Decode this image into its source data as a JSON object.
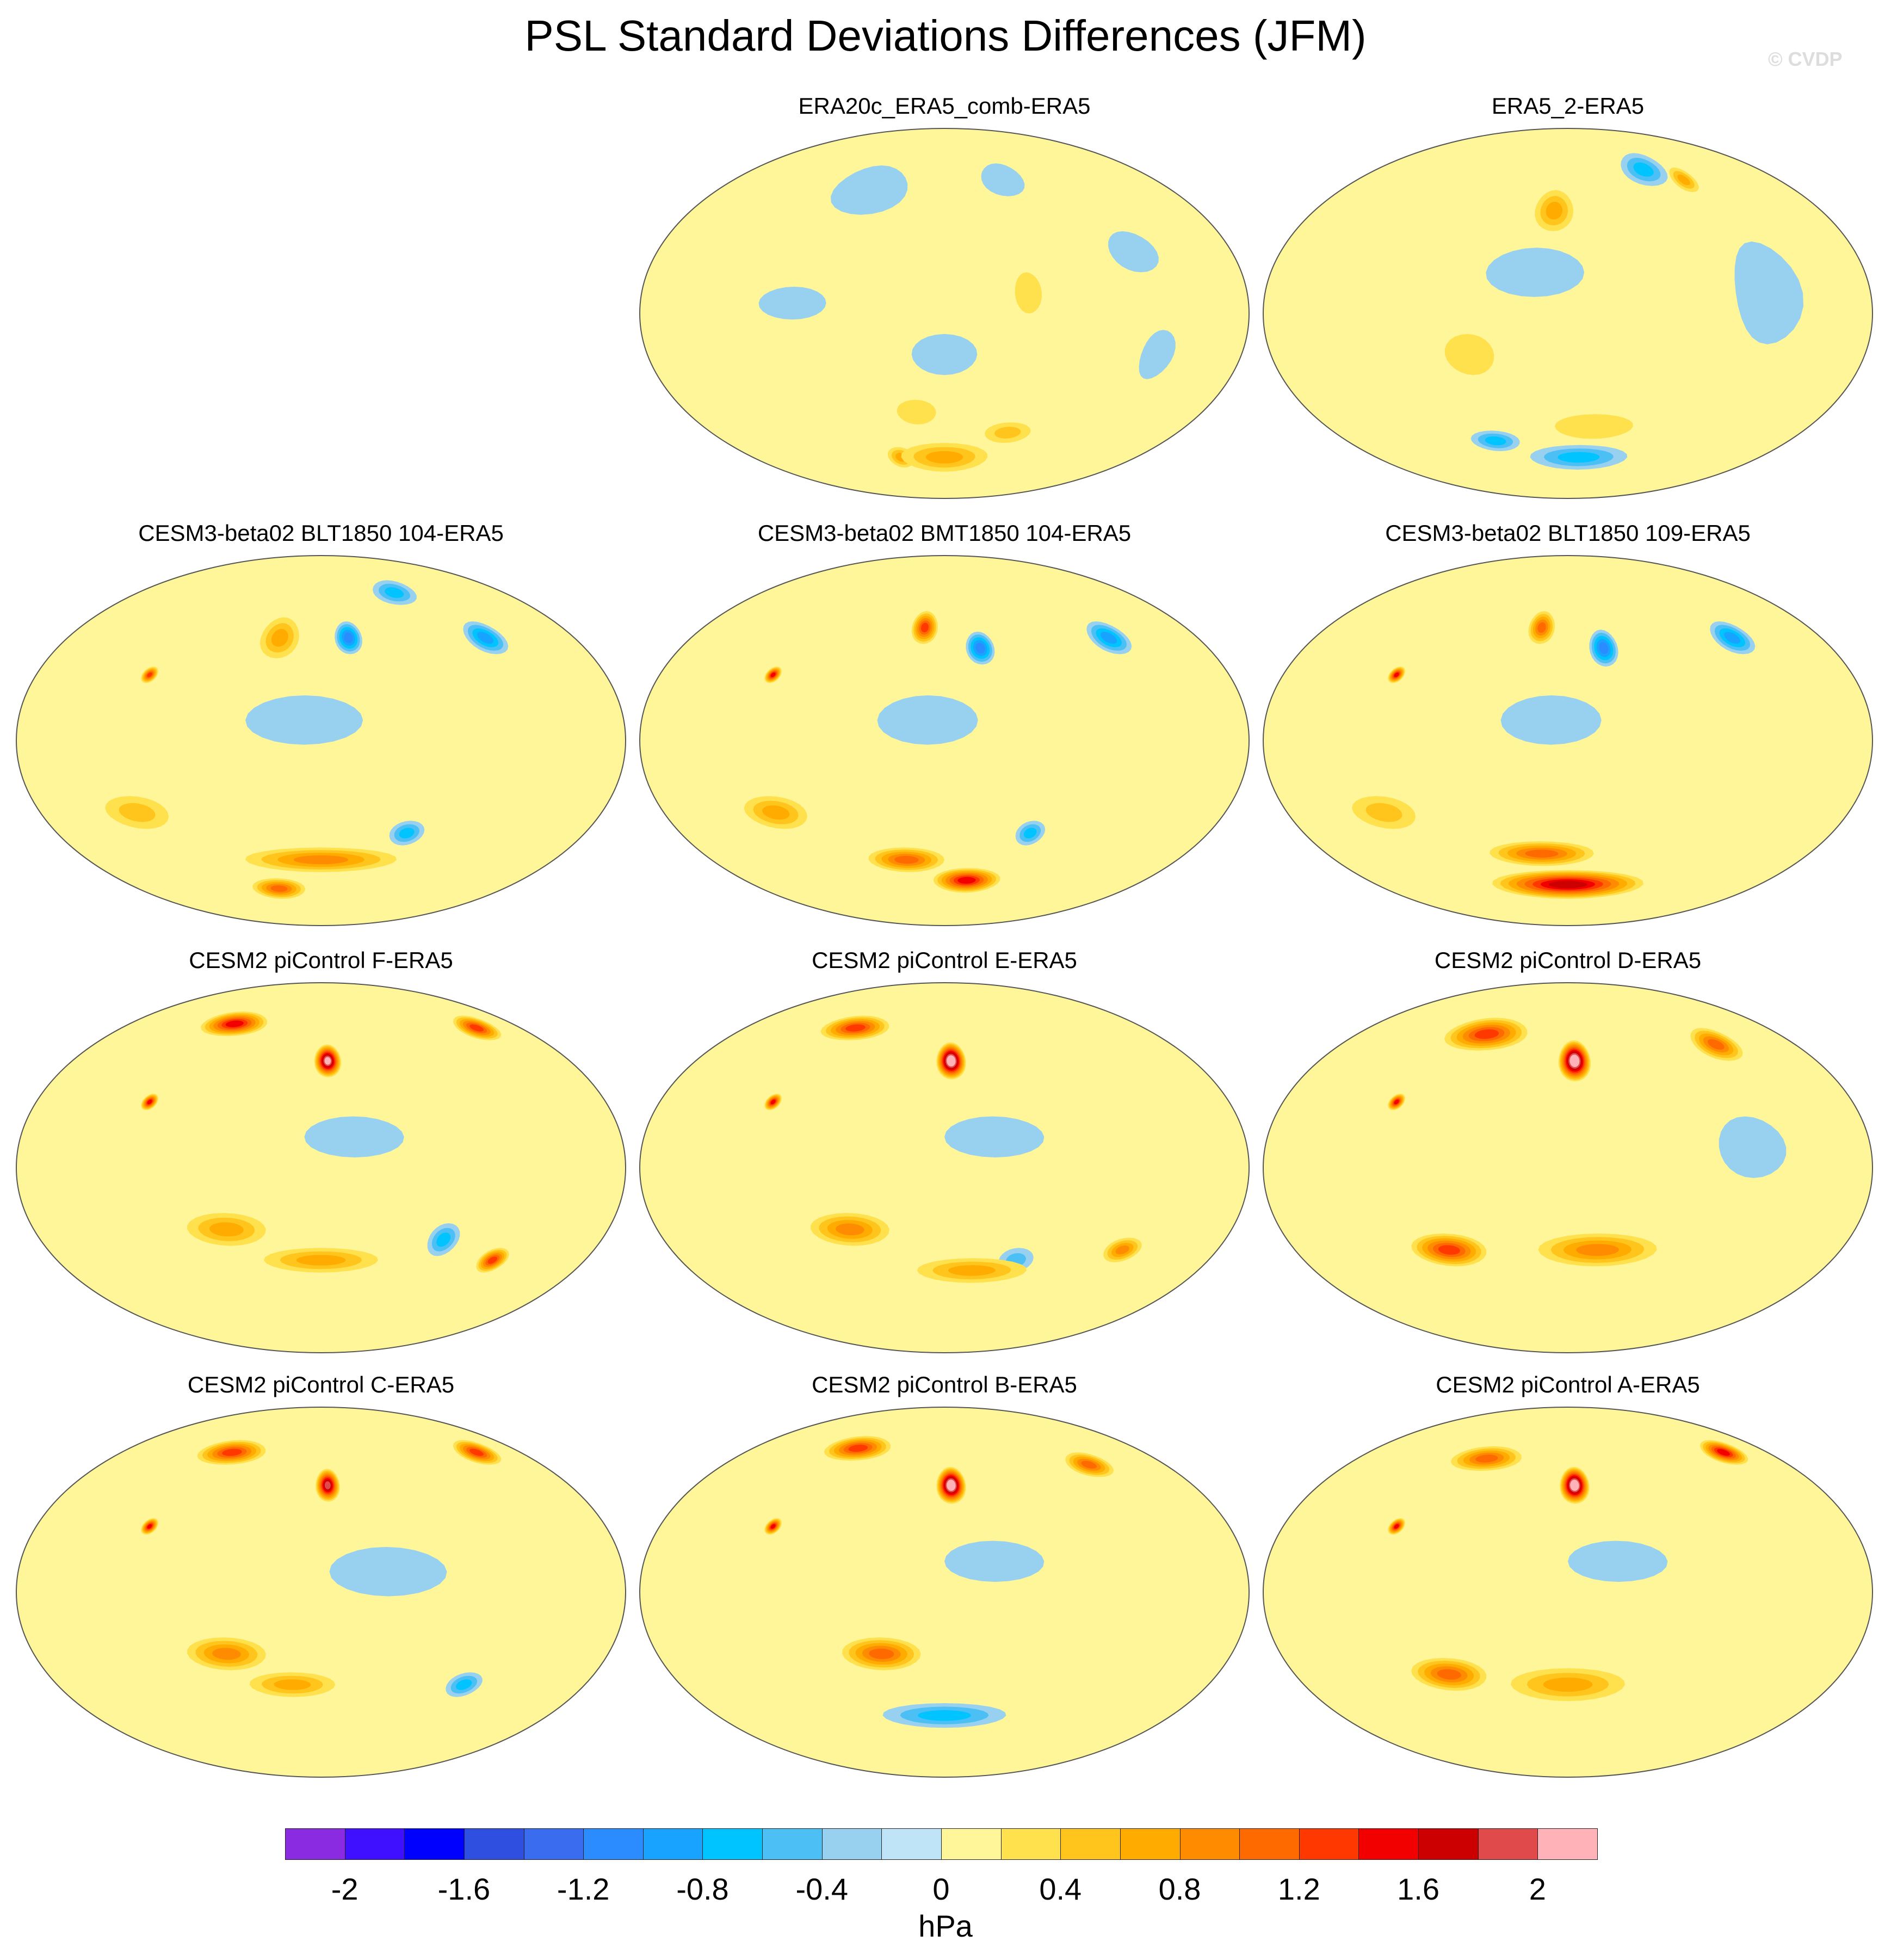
{
  "title": "PSL Standard Deviations Differences (JFM)",
  "watermark": "© CVDP",
  "colorbar": {
    "units": "hPa",
    "colors": [
      "#8a2be2",
      "#3f10ff",
      "#0000ff",
      "#2e4fe0",
      "#3a6cf0",
      "#2a8cff",
      "#17a3ff",
      "#00c4ff",
      "#4cc0f5",
      "#98d0ef",
      "#bfe3f7",
      "#fff69a",
      "#ffe14d",
      "#ffc51c",
      "#ffab00",
      "#ff8c00",
      "#ff6a00",
      "#ff3800",
      "#f20000",
      "#cc0000",
      "#e04a4a",
      "#ffb3b8"
    ],
    "tick_labels": [
      "-2",
      "-1.6",
      "-1.2",
      "-0.8",
      "-0.4",
      "0",
      "0.4",
      "0.8",
      "1.2",
      "1.6",
      "2"
    ]
  },
  "chart_data": {
    "type": "heatmap",
    "projection": "Robinson (global, Pacific-centered)",
    "field": "PSL standard deviation difference",
    "season": "JFM",
    "units": "hPa",
    "levels": [
      -2.0,
      -1.8,
      -1.6,
      -1.4,
      -1.2,
      -1.0,
      -0.8,
      -0.6,
      -0.4,
      -0.2,
      0.0,
      0.2,
      0.4,
      0.6,
      0.8,
      1.0,
      1.2,
      1.4,
      1.6,
      1.8,
      2.0
    ],
    "panels": [
      {
        "title": "ERA20c_ERA5_comb-ERA5",
        "row": 0,
        "col": 1,
        "anomalies": [
          {
            "lon": 180,
            "lat": -70,
            "value": 0.7,
            "rx": 40,
            "ry": 7
          },
          {
            "lon": 140,
            "lat": -70,
            "value": 0.5,
            "rx": 12,
            "ry": 5
          },
          {
            "lon": 230,
            "lat": -58,
            "value": 0.4,
            "rx": 18,
            "ry": 5
          },
          {
            "lon": 160,
            "lat": -48,
            "value": 0.3,
            "rx": 14,
            "ry": 6
          },
          {
            "lon": 230,
            "lat": 10,
            "value": 0.3,
            "rx": 8,
            "ry": 10
          },
          {
            "lon": 90,
            "lat": 5,
            "value": -0.25,
            "rx": 20,
            "ry": 8
          },
          {
            "lon": 180,
            "lat": -20,
            "value": -0.2,
            "rx": 20,
            "ry": 10
          },
          {
            "lon": 120,
            "lat": 60,
            "value": -0.25,
            "rx": 30,
            "ry": 12
          },
          {
            "lon": 230,
            "lat": 65,
            "value": -0.2,
            "rx": 18,
            "ry": 8
          },
          {
            "lon": 300,
            "lat": 30,
            "value": -0.25,
            "rx": 15,
            "ry": 10
          },
          {
            "lon": 310,
            "lat": -20,
            "value": -0.2,
            "rx": 10,
            "ry": 12
          }
        ]
      },
      {
        "title": "ERA5_2-ERA5",
        "row": 0,
        "col": 2,
        "anomalies": [
          {
            "lon": 170,
            "lat": 50,
            "value": 0.5,
            "rx": 14,
            "ry": 10
          },
          {
            "lon": 280,
            "lat": 65,
            "value": 0.6,
            "rx": 10,
            "ry": 6
          },
          {
            "lon": 200,
            "lat": -55,
            "value": 0.3,
            "rx": 30,
            "ry": 6
          },
          {
            "lon": 120,
            "lat": -20,
            "value": 0.25,
            "rx": 15,
            "ry": 10
          },
          {
            "lon": 190,
            "lat": -70,
            "value": -0.5,
            "rx": 45,
            "ry": 6
          },
          {
            "lon": 120,
            "lat": -62,
            "value": -0.6,
            "rx": 20,
            "ry": 5
          },
          {
            "lon": 250,
            "lat": 70,
            "value": -0.6,
            "rx": 20,
            "ry": 8
          },
          {
            "lon": 300,
            "lat": 10,
            "value": -0.3,
            "rx": 20,
            "ry": 25
          },
          {
            "lon": 160,
            "lat": 20,
            "value": -0.2,
            "rx": 30,
            "ry": 12
          }
        ]
      },
      {
        "title": "CESM3-beta02 BLT1850 104-ERA5",
        "row": 1,
        "col": 0,
        "anomalies": [
          {
            "lon": 200,
            "lat": 50,
            "value": -1.0,
            "rx": 10,
            "ry": 8
          },
          {
            "lon": 300,
            "lat": 50,
            "value": -0.8,
            "rx": 14,
            "ry": 8
          },
          {
            "lon": 250,
            "lat": 72,
            "value": -0.5,
            "rx": 20,
            "ry": 6
          },
          {
            "lon": 150,
            "lat": 50,
            "value": 0.7,
            "rx": 14,
            "ry": 10
          },
          {
            "lon": 70,
            "lat": 32,
            "value": 1.2,
            "rx": 5,
            "ry": 4
          },
          {
            "lon": 180,
            "lat": -58,
            "value": 0.8,
            "rx": 60,
            "ry": 6
          },
          {
            "lon": 140,
            "lat": -72,
            "value": 1.0,
            "rx": 25,
            "ry": 5
          },
          {
            "lon": 240,
            "lat": -45,
            "value": -0.5,
            "rx": 12,
            "ry": 6
          },
          {
            "lon": 170,
            "lat": 10,
            "value": -0.25,
            "rx": 35,
            "ry": 12
          },
          {
            "lon": 60,
            "lat": -35,
            "value": 0.4,
            "rx": 20,
            "ry": 8
          }
        ]
      },
      {
        "title": "CESM3-beta02 BMT1850 104-ERA5",
        "row": 1,
        "col": 1,
        "anomalies": [
          {
            "lon": 205,
            "lat": 45,
            "value": -0.9,
            "rx": 10,
            "ry": 8
          },
          {
            "lon": 300,
            "lat": 50,
            "value": -0.8,
            "rx": 14,
            "ry": 8
          },
          {
            "lon": 165,
            "lat": 55,
            "value": 1.1,
            "rx": 10,
            "ry": 8
          },
          {
            "lon": 70,
            "lat": 32,
            "value": 1.3,
            "rx": 5,
            "ry": 4
          },
          {
            "lon": 200,
            "lat": -68,
            "value": 1.4,
            "rx": 30,
            "ry": 6
          },
          {
            "lon": 150,
            "lat": -58,
            "value": 0.9,
            "rx": 30,
            "ry": 6
          },
          {
            "lon": 240,
            "lat": -45,
            "value": -0.5,
            "rx": 10,
            "ry": 6
          },
          {
            "lon": 170,
            "lat": 10,
            "value": -0.25,
            "rx": 30,
            "ry": 12
          },
          {
            "lon": 70,
            "lat": -35,
            "value": 0.5,
            "rx": 20,
            "ry": 8
          }
        ]
      },
      {
        "title": "CESM3-beta02 BLT1850 109-ERA5",
        "row": 1,
        "col": 2,
        "anomalies": [
          {
            "lon": 205,
            "lat": 45,
            "value": -1.0,
            "rx": 10,
            "ry": 9
          },
          {
            "lon": 300,
            "lat": 50,
            "value": -0.8,
            "rx": 14,
            "ry": 8
          },
          {
            "lon": 160,
            "lat": 55,
            "value": 1.0,
            "rx": 10,
            "ry": 8
          },
          {
            "lon": 70,
            "lat": 32,
            "value": 1.3,
            "rx": 5,
            "ry": 4
          },
          {
            "lon": 180,
            "lat": -70,
            "value": 1.6,
            "rx": 70,
            "ry": 7
          },
          {
            "lon": 160,
            "lat": -55,
            "value": 1.0,
            "rx": 40,
            "ry": 6
          },
          {
            "lon": 170,
            "lat": 10,
            "value": -0.3,
            "rx": 30,
            "ry": 12
          },
          {
            "lon": 60,
            "lat": -35,
            "value": 0.4,
            "rx": 20,
            "ry": 8
          }
        ]
      },
      {
        "title": "CESM2 piControl F-ERA5",
        "row": 2,
        "col": 0,
        "anomalies": [
          {
            "lon": 185,
            "lat": 52,
            "value": 2.0,
            "rx": 10,
            "ry": 8
          },
          {
            "lon": 100,
            "lat": 70,
            "value": 1.3,
            "rx": 30,
            "ry": 6
          },
          {
            "lon": 320,
            "lat": 68,
            "value": 1.2,
            "rx": 18,
            "ry": 6
          },
          {
            "lon": 70,
            "lat": 32,
            "value": 1.4,
            "rx": 5,
            "ry": 4
          },
          {
            "lon": 300,
            "lat": -45,
            "value": 1.2,
            "rx": 10,
            "ry": 6
          },
          {
            "lon": 120,
            "lat": -30,
            "value": 0.7,
            "rx": 25,
            "ry": 8
          },
          {
            "lon": 180,
            "lat": -45,
            "value": 0.6,
            "rx": 40,
            "ry": 6
          },
          {
            "lon": 260,
            "lat": -35,
            "value": -0.5,
            "rx": 10,
            "ry": 8
          },
          {
            "lon": 200,
            "lat": 15,
            "value": -0.25,
            "rx": 30,
            "ry": 10
          }
        ]
      },
      {
        "title": "CESM2 piControl E-ERA5",
        "row": 2,
        "col": 1,
        "anomalies": [
          {
            "lon": 185,
            "lat": 52,
            "value": 2.2,
            "rx": 11,
            "ry": 9
          },
          {
            "lon": 100,
            "lat": 68,
            "value": 1.2,
            "rx": 30,
            "ry": 6
          },
          {
            "lon": 70,
            "lat": 32,
            "value": 1.4,
            "rx": 5,
            "ry": 4
          },
          {
            "lon": 120,
            "lat": -30,
            "value": 0.8,
            "rx": 25,
            "ry": 8
          },
          {
            "lon": 200,
            "lat": -50,
            "value": 0.7,
            "rx": 40,
            "ry": 6
          },
          {
            "lon": 300,
            "lat": -40,
            "value": 0.8,
            "rx": 12,
            "ry": 6
          },
          {
            "lon": 210,
            "lat": 15,
            "value": -0.25,
            "rx": 30,
            "ry": 10
          },
          {
            "lon": 230,
            "lat": -45,
            "value": -0.4,
            "rx": 12,
            "ry": 6
          }
        ]
      },
      {
        "title": "CESM2 piControl D-ERA5",
        "row": 2,
        "col": 2,
        "anomalies": [
          {
            "lon": 185,
            "lat": 52,
            "value": 2.3,
            "rx": 12,
            "ry": 10
          },
          {
            "lon": 110,
            "lat": 65,
            "value": 1.2,
            "rx": 35,
            "ry": 8
          },
          {
            "lon": 300,
            "lat": 60,
            "value": 0.9,
            "rx": 18,
            "ry": 8
          },
          {
            "lon": 70,
            "lat": 32,
            "value": 1.4,
            "rx": 5,
            "ry": 4
          },
          {
            "lon": 100,
            "lat": -40,
            "value": 1.1,
            "rx": 25,
            "ry": 8
          },
          {
            "lon": 200,
            "lat": -40,
            "value": 0.8,
            "rx": 40,
            "ry": 8
          },
          {
            "lon": 290,
            "lat": 10,
            "value": -0.25,
            "rx": 20,
            "ry": 15
          }
        ]
      },
      {
        "title": "CESM2 piControl C-ERA5",
        "row": 3,
        "col": 0,
        "anomalies": [
          {
            "lon": 185,
            "lat": 52,
            "value": 1.9,
            "rx": 9,
            "ry": 8
          },
          {
            "lon": 100,
            "lat": 68,
            "value": 1.2,
            "rx": 30,
            "ry": 6
          },
          {
            "lon": 320,
            "lat": 68,
            "value": 1.2,
            "rx": 18,
            "ry": 6
          },
          {
            "lon": 70,
            "lat": 32,
            "value": 1.4,
            "rx": 5,
            "ry": 4
          },
          {
            "lon": 120,
            "lat": -30,
            "value": 0.8,
            "rx": 25,
            "ry": 8
          },
          {
            "lon": 160,
            "lat": -45,
            "value": 0.7,
            "rx": 30,
            "ry": 6
          },
          {
            "lon": 220,
            "lat": 10,
            "value": -0.3,
            "rx": 35,
            "ry": 12
          },
          {
            "lon": 280,
            "lat": -45,
            "value": -0.5,
            "rx": 12,
            "ry": 6
          }
        ]
      },
      {
        "title": "CESM2 piControl B-ERA5",
        "row": 3,
        "col": 1,
        "anomalies": [
          {
            "lon": 185,
            "lat": 52,
            "value": 2.3,
            "rx": 11,
            "ry": 9
          },
          {
            "lon": 100,
            "lat": 70,
            "value": 1.2,
            "rx": 30,
            "ry": 6
          },
          {
            "lon": 300,
            "lat": 62,
            "value": 0.9,
            "rx": 18,
            "ry": 6
          },
          {
            "lon": 70,
            "lat": 32,
            "value": 1.4,
            "rx": 5,
            "ry": 4
          },
          {
            "lon": 140,
            "lat": -30,
            "value": 0.9,
            "rx": 25,
            "ry": 8
          },
          {
            "lon": 180,
            "lat": -60,
            "value": -0.5,
            "rx": 50,
            "ry": 6
          },
          {
            "lon": 210,
            "lat": 15,
            "value": -0.25,
            "rx": 30,
            "ry": 10
          }
        ]
      },
      {
        "title": "CESM2 piControl A-ERA5",
        "row": 3,
        "col": 2,
        "anomalies": [
          {
            "lon": 185,
            "lat": 52,
            "value": 2.2,
            "rx": 11,
            "ry": 9
          },
          {
            "lon": 320,
            "lat": 68,
            "value": 1.3,
            "rx": 18,
            "ry": 6
          },
          {
            "lon": 110,
            "lat": 65,
            "value": 0.9,
            "rx": 30,
            "ry": 6
          },
          {
            "lon": 70,
            "lat": 32,
            "value": 1.4,
            "rx": 5,
            "ry": 4
          },
          {
            "lon": 100,
            "lat": -40,
            "value": 1.0,
            "rx": 25,
            "ry": 8
          },
          {
            "lon": 180,
            "lat": -45,
            "value": 0.7,
            "rx": 40,
            "ry": 8
          },
          {
            "lon": 210,
            "lat": 15,
            "value": -0.25,
            "rx": 30,
            "ry": 10
          }
        ]
      }
    ]
  }
}
